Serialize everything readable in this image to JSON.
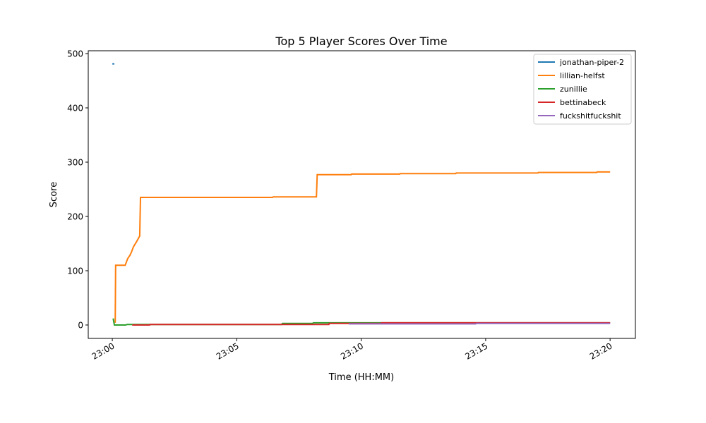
{
  "chart_data": {
    "type": "line",
    "title": "Top 5 Player Scores Over Time",
    "xlabel": "Time (HH:MM)",
    "ylabel": "Score",
    "xlim": [
      "22:59:02",
      "23:21:01"
    ],
    "ylim": [
      -24.7,
      505.2
    ],
    "xticks": [
      "23:00",
      "23:05",
      "23:10",
      "23:15",
      "23:20"
    ],
    "yticks": [
      0,
      100,
      200,
      300,
      400,
      500
    ],
    "grid": false,
    "legend_position": "top-right",
    "series": [
      {
        "name": "jonathan-piper-2",
        "color": "#1f77b4",
        "x": [
          "23:00:00",
          "23:00:05"
        ],
        "y": [
          481,
          481
        ]
      },
      {
        "name": "lillian-helfst",
        "color": "#ff7f0e",
        "x": [
          "23:00:07",
          "23:00:08",
          "23:00:31",
          "23:00:37",
          "23:00:43",
          "23:00:46",
          "23:00:51",
          "23:00:58",
          "23:01:06",
          "23:01:08",
          "23:06:26",
          "23:06:28",
          "23:08:12",
          "23:08:14",
          "23:09:36",
          "23:09:37",
          "23:11:33",
          "23:11:34",
          "23:13:48",
          "23:13:49",
          "23:17:06",
          "23:17:07",
          "23:19:28",
          "23:19:29",
          "23:20:00"
        ],
        "y": [
          4,
          110,
          110,
          122,
          129,
          134,
          144,
          153,
          164,
          235,
          235,
          236,
          236,
          277,
          277,
          278,
          278,
          279,
          279,
          280,
          280,
          281,
          281,
          282,
          282
        ]
      },
      {
        "name": "zunillie",
        "color": "#2ca02c",
        "x": [
          "23:00:02",
          "23:00:05",
          "23:00:32",
          "23:00:36",
          "23:06:48",
          "23:06:50",
          "23:08:03",
          "23:08:05",
          "23:10:48",
          "23:20:00"
        ],
        "y": [
          12,
          0,
          0,
          1,
          1,
          3,
          3,
          4,
          4,
          4
        ]
      },
      {
        "name": "bettinabeck",
        "color": "#d62728",
        "x": [
          "23:00:48",
          "23:01:30",
          "23:01:31",
          "23:08:42",
          "23:08:43",
          "23:10:48",
          "23:10:49",
          "23:20:00"
        ],
        "y": [
          0,
          0,
          1,
          1,
          3,
          3,
          4,
          4
        ]
      },
      {
        "name": "fuckshitfuckshit",
        "color": "#9467bd",
        "x": [
          "23:09:30",
          "23:14:36",
          "23:14:37",
          "23:20:00"
        ],
        "y": [
          2,
          2,
          3,
          3
        ]
      }
    ]
  }
}
